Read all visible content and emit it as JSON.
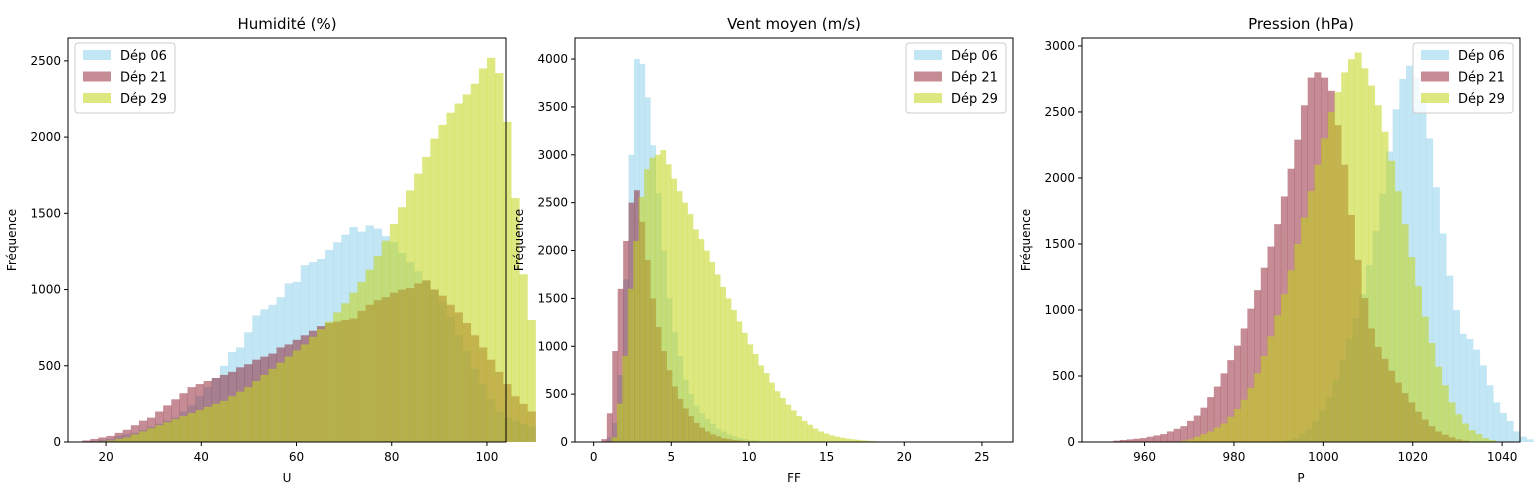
{
  "figure": {
    "background": "#ffffff"
  },
  "chart_data": [
    {
      "type": "bar",
      "title": "Humidité (%)",
      "xlabel": "U",
      "ylabel": "Fréquence",
      "xlim": [
        12,
        104
      ],
      "ylim": [
        0,
        2650
      ],
      "xticks": [
        20,
        40,
        60,
        80,
        100
      ],
      "yticks": [
        0,
        500,
        1000,
        1500,
        2000,
        2500
      ],
      "legend": "top-left",
      "bin_width": 1.7,
      "series": [
        {
          "name": "Dép 06",
          "color": "#87ceeb",
          "opacity": 0.5,
          "x_start": 15,
          "values": [
            0,
            5,
            15,
            20,
            40,
            50,
            60,
            80,
            100,
            120,
            140,
            160,
            200,
            240,
            300,
            360,
            420,
            500,
            590,
            620,
            720,
            830,
            870,
            900,
            950,
            1040,
            1050,
            1160,
            1180,
            1200,
            1260,
            1310,
            1360,
            1410,
            1380,
            1420,
            1400,
            1350,
            1310,
            1240,
            1180,
            1120,
            1060,
            1000,
            920,
            820,
            700,
            600,
            480,
            380,
            280,
            200,
            160,
            140,
            120,
            100
          ]
        },
        {
          "name": "Dép 21",
          "color": "#8b1a2b",
          "opacity": 0.5,
          "x_start": 15,
          "values": [
            10,
            20,
            30,
            40,
            60,
            80,
            110,
            140,
            160,
            200,
            240,
            280,
            320,
            360,
            380,
            400,
            420,
            440,
            460,
            490,
            510,
            540,
            560,
            580,
            620,
            640,
            670,
            700,
            730,
            760,
            780,
            790,
            800,
            810,
            860,
            900,
            930,
            950,
            980,
            1000,
            1010,
            1040,
            1060,
            1000,
            960,
            900,
            850,
            780,
            700,
            620,
            540,
            460,
            380,
            300,
            250,
            200
          ]
        },
        {
          "name": "Dép 29",
          "color": "#c3d617",
          "opacity": 0.55,
          "x_start": 15,
          "values": [
            0,
            0,
            5,
            10,
            20,
            30,
            50,
            70,
            90,
            110,
            130,
            150,
            170,
            190,
            210,
            230,
            250,
            270,
            300,
            330,
            360,
            400,
            440,
            480,
            520,
            560,
            600,
            640,
            690,
            740,
            790,
            850,
            910,
            980,
            1050,
            1130,
            1220,
            1320,
            1430,
            1540,
            1650,
            1760,
            1870,
            1990,
            2080,
            2160,
            2220,
            2280,
            2350,
            2450,
            2520,
            2420,
            2100,
            1600,
            1100,
            800
          ]
        }
      ]
    },
    {
      "type": "bar",
      "title": "Vent moyen (m/s)",
      "xlabel": "FF",
      "ylabel": "Fréquence",
      "xlim": [
        -1.2,
        27
      ],
      "ylim": [
        0,
        4220
      ],
      "xticks": [
        0,
        5,
        10,
        15,
        20,
        25
      ],
      "yticks": [
        0,
        500,
        1000,
        1500,
        2000,
        2500,
        3000,
        3500,
        4000
      ],
      "legend": "top-right",
      "bin_width": 0.35,
      "series": [
        {
          "name": "Dép 06",
          "color": "#87ceeb",
          "opacity": 0.5,
          "x_start": 0.5,
          "values": [
            0,
            50,
            200,
            700,
            1700,
            3000,
            4000,
            3950,
            3600,
            3100,
            2600,
            2000,
            1500,
            1150,
            900,
            650,
            500,
            380,
            300,
            240,
            190,
            140,
            110,
            80,
            60,
            40,
            30,
            20,
            15,
            10,
            5,
            0
          ]
        },
        {
          "name": "Dép 21",
          "color": "#8b1a2b",
          "opacity": 0.5,
          "x_start": 0.5,
          "values": [
            30,
            300,
            950,
            1600,
            2100,
            2500,
            2630,
            2300,
            1900,
            1500,
            1200,
            950,
            750,
            580,
            450,
            350,
            270,
            200,
            150,
            110,
            80,
            60,
            40,
            30,
            20,
            15,
            10,
            5,
            0
          ]
        },
        {
          "name": "Dép 29",
          "color": "#c3d617",
          "opacity": 0.55,
          "x_start": 0.8,
          "values": [
            0,
            50,
            400,
            900,
            1600,
            2100,
            2560,
            2850,
            2970,
            3000,
            3050,
            2900,
            2750,
            2620,
            2500,
            2380,
            2220,
            2120,
            2000,
            1880,
            1750,
            1620,
            1500,
            1380,
            1260,
            1140,
            1020,
            920,
            800,
            720,
            620,
            530,
            460,
            390,
            330,
            270,
            220,
            180,
            140,
            110,
            90,
            70,
            55,
            45,
            35,
            28,
            22,
            16,
            12,
            8,
            5,
            3,
            2,
            1
          ]
        }
      ]
    },
    {
      "type": "bar",
      "title": "Pression (hPa)",
      "xlabel": "P",
      "ylabel": "Fréquence",
      "xlim": [
        946,
        1044
      ],
      "ylim": [
        0,
        3060
      ],
      "xticks": [
        960,
        980,
        1000,
        1020,
        1040
      ],
      "yticks": [
        0,
        500,
        1000,
        1500,
        2000,
        2500,
        3000
      ],
      "legend": "top-right",
      "bin_width": 1.5,
      "series": [
        {
          "name": "Dép 06",
          "color": "#87ceeb",
          "opacity": 0.5,
          "x_start": 990,
          "values": [
            5,
            15,
            30,
            60,
            100,
            160,
            240,
            340,
            470,
            620,
            780,
            940,
            1120,
            1340,
            1600,
            1880,
            2200,
            2520,
            2750,
            2850,
            2760,
            2600,
            2300,
            1930,
            1580,
            1260,
            1000,
            820,
            780,
            700,
            580,
            430,
            300,
            220,
            160,
            80,
            40,
            20
          ]
        },
        {
          "name": "Dép 21",
          "color": "#8b1a2b",
          "opacity": 0.5,
          "x_start": 953,
          "values": [
            10,
            15,
            20,
            25,
            30,
            40,
            50,
            60,
            80,
            100,
            120,
            160,
            200,
            260,
            340,
            420,
            520,
            620,
            730,
            860,
            1010,
            1150,
            1320,
            1480,
            1650,
            1860,
            2070,
            2290,
            2550,
            2760,
            2800,
            2760,
            2660,
            2400,
            2100,
            1720,
            1380,
            1090,
            860,
            720,
            630,
            540,
            450,
            370,
            300,
            230,
            170,
            120,
            80,
            55,
            35,
            20,
            10
          ]
        },
        {
          "name": "Dép 29",
          "color": "#c3d617",
          "opacity": 0.55,
          "x_start": 968,
          "values": [
            10,
            20,
            40,
            60,
            80,
            110,
            140,
            190,
            250,
            320,
            410,
            520,
            650,
            800,
            960,
            1120,
            1300,
            1500,
            1700,
            1900,
            2100,
            2300,
            2500,
            2650,
            2800,
            2900,
            2950,
            2830,
            2700,
            2550,
            2350,
            2130,
            1900,
            1650,
            1400,
            1180,
            950,
            750,
            570,
            430,
            300,
            210,
            140,
            90,
            60,
            30,
            15
          ]
        }
      ]
    }
  ]
}
